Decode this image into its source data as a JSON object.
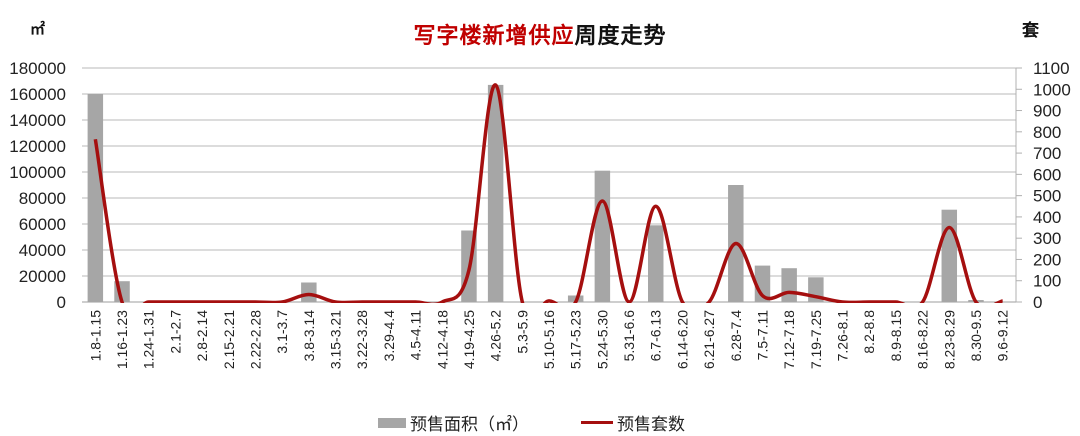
{
  "title": {
    "part_red": "写字楼新增供应",
    "part_black": "周度走势"
  },
  "units": {
    "left": "㎡",
    "right": "套"
  },
  "legend": {
    "bar_label": "预售面积（㎡）",
    "line_label": "预售套数"
  },
  "colors": {
    "bar": "#a6a6a6",
    "line": "#a50f0f",
    "title_red": "#c00000",
    "grid": "#c8c8c8"
  },
  "chart_data": {
    "type": "bar+line",
    "title": "写字楼新增供应周度走势",
    "xlabel": "",
    "ylabel_left": "㎡",
    "ylabel_right": "套",
    "ylim_left": [
      0,
      180000
    ],
    "ylim_right": [
      0,
      1100
    ],
    "yticks_left": [
      0,
      20000,
      40000,
      60000,
      80000,
      100000,
      120000,
      140000,
      160000,
      180000
    ],
    "yticks_right": [
      0,
      100,
      200,
      300,
      400,
      500,
      600,
      700,
      800,
      900,
      1000,
      1100
    ],
    "grid": true,
    "legend_position": "bottom",
    "categories": [
      "1.8-1.15",
      "1.16-1.23",
      "1.24-1.31",
      "2.1-2.7",
      "2.8-2.14",
      "2.15-2.21",
      "2.22-2.28",
      "3.1-3.7",
      "3.8-3.14",
      "3.15-3.21",
      "3.22-3.28",
      "3.29-4.4",
      "4.5-4.11",
      "4.12-4.18",
      "4.19-4.25",
      "4.26-5.2",
      "5.3-5.9",
      "5.10-5.16",
      "5.17-5.23",
      "5.24-5.30",
      "5.31-6.6",
      "6.7-6.13",
      "6.14-6.20",
      "6.21-6.27",
      "6.28-7.4",
      "7.5-7.11",
      "7.12-7.18",
      "7.19-7.25",
      "7.26-8.1",
      "8.2-8.8",
      "8.9-8.15",
      "8.16-8.22",
      "8.23-8.29",
      "8.30-9.5",
      "9.6-9.12"
    ],
    "series": [
      {
        "name": "预售面积（㎡）",
        "type": "bar",
        "axis": "left",
        "values": [
          160000,
          16000,
          0,
          0,
          0,
          0,
          0,
          0,
          15000,
          0,
          0,
          0,
          0,
          0,
          55000,
          167000,
          0,
          0,
          5000,
          101000,
          0,
          59000,
          0,
          0,
          90000,
          28000,
          26000,
          19000,
          0,
          0,
          0,
          0,
          71000,
          1500,
          0
        ]
      },
      {
        "name": "预售套数",
        "type": "line",
        "axis": "right",
        "smooth": true,
        "values": [
          765,
          0,
          0,
          0,
          0,
          0,
          0,
          0,
          35,
          0,
          0,
          0,
          0,
          0,
          150,
          1020,
          0,
          5,
          0,
          475,
          0,
          450,
          0,
          0,
          275,
          30,
          45,
          25,
          0,
          0,
          0,
          0,
          350,
          0,
          5
        ]
      }
    ]
  }
}
